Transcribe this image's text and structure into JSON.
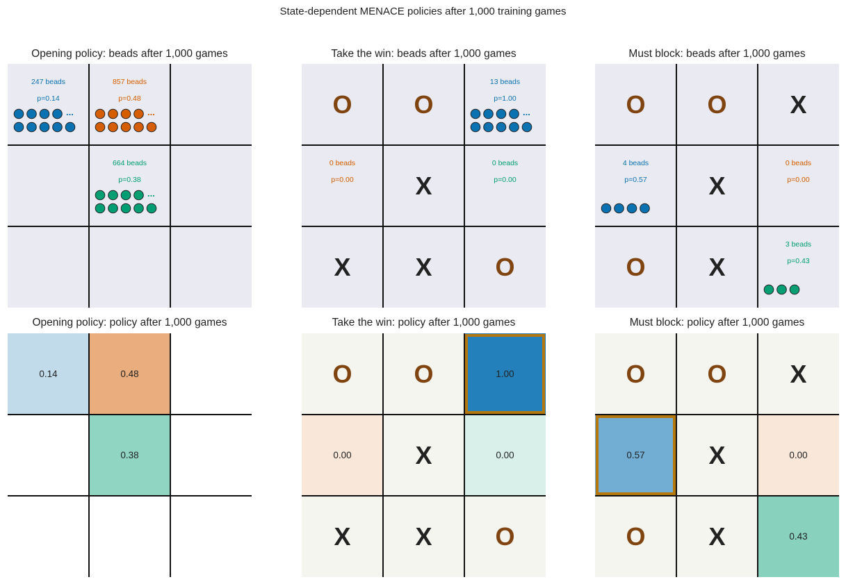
{
  "title": "State-dependent MENACE policies after 1,000 training games",
  "chart_data": [
    {
      "type": "heatmap",
      "title": "Opening policy: beads after 1,000 games",
      "kind": "beads",
      "board": [
        "",
        "",
        "",
        "",
        "",
        "",
        "",
        "",
        ""
      ],
      "cells": [
        {
          "index": 0,
          "beads": 247,
          "beads_label": "247 beads",
          "p_label": "p=0.14",
          "color": "#0b72b2",
          "dots": 9,
          "ellipsis": true
        },
        {
          "index": 1,
          "beads": 857,
          "beads_label": "857 beads",
          "p_label": "p=0.48",
          "color": "#d55e00",
          "dots": 9,
          "ellipsis": true
        },
        {
          "index": 4,
          "beads": 664,
          "beads_label": "664 beads",
          "p_label": "p=0.38",
          "color": "#009e73",
          "dots": 9,
          "ellipsis": true
        }
      ],
      "ellipsis_text": "..."
    },
    {
      "type": "heatmap",
      "title": "Take the win: beads after 1,000 games",
      "kind": "beads",
      "board": [
        "O",
        "O",
        "",
        "",
        "X",
        "",
        "X",
        "X",
        "O"
      ],
      "cells": [
        {
          "index": 2,
          "beads": 13,
          "beads_label": "13 beads",
          "p_label": "p=1.00",
          "color": "#0b72b2",
          "dots": 9,
          "ellipsis": true
        },
        {
          "index": 3,
          "beads": 0,
          "beads_label": "0 beads",
          "p_label": "p=0.00",
          "color": "#d55e00",
          "dots": 0,
          "ellipsis": false
        },
        {
          "index": 5,
          "beads": 0,
          "beads_label": "0 beads",
          "p_label": "p=0.00",
          "color": "#009e73",
          "dots": 0,
          "ellipsis": false
        }
      ],
      "ellipsis_text": "..."
    },
    {
      "type": "heatmap",
      "title": "Must block: beads after 1,000 games",
      "kind": "beads",
      "board": [
        "O",
        "O",
        "X",
        "",
        "X",
        "",
        "O",
        "X",
        ""
      ],
      "cells": [
        {
          "index": 3,
          "beads": 4,
          "beads_label": "4 beads",
          "p_label": "p=0.57",
          "color": "#0b72b2",
          "dots": 4,
          "ellipsis": false
        },
        {
          "index": 5,
          "beads": 0,
          "beads_label": "0 beads",
          "p_label": "p=0.00",
          "color": "#d55e00",
          "dots": 0,
          "ellipsis": false
        },
        {
          "index": 8,
          "beads": 3,
          "beads_label": "3 beads",
          "p_label": "p=0.43",
          "color": "#009e73",
          "dots": 3,
          "ellipsis": false
        }
      ],
      "ellipsis_text": "..."
    },
    {
      "type": "heatmap",
      "title": "Opening policy: policy after 1,000 games",
      "kind": "policy",
      "board": [
        "",
        "",
        "",
        "",
        "",
        "",
        "",
        "",
        ""
      ],
      "cells": [
        {
          "index": 0,
          "prob": 0.14,
          "label": "0.14",
          "color": "#0b72b2"
        },
        {
          "index": 1,
          "prob": 0.48,
          "label": "0.48",
          "color": "#d55e00"
        },
        {
          "index": 4,
          "prob": 0.38,
          "label": "0.38",
          "color": "#009e73"
        }
      ],
      "chosen_index": null
    },
    {
      "type": "heatmap",
      "title": "Take the win: policy after 1,000 games",
      "kind": "policy",
      "board": [
        "O",
        "O",
        "",
        "",
        "X",
        "",
        "X",
        "X",
        "O"
      ],
      "cells": [
        {
          "index": 2,
          "prob": 1.0,
          "label": "1.00",
          "color": "#0b72b2"
        },
        {
          "index": 3,
          "prob": 0.0,
          "label": "0.00",
          "color": "#d55e00"
        },
        {
          "index": 5,
          "prob": 0.0,
          "label": "0.00",
          "color": "#009e73"
        }
      ],
      "chosen_index": 2
    },
    {
      "type": "heatmap",
      "title": "Must block: policy after 1,000 games",
      "kind": "policy",
      "board": [
        "O",
        "O",
        "X",
        "",
        "X",
        "",
        "O",
        "X",
        ""
      ],
      "cells": [
        {
          "index": 3,
          "prob": 0.57,
          "label": "0.57",
          "color": "#0b72b2"
        },
        {
          "index": 5,
          "prob": 0.0,
          "label": "0.00",
          "color": "#d55e00"
        },
        {
          "index": 8,
          "prob": 0.43,
          "label": "0.43",
          "color": "#009e73"
        }
      ],
      "chosen_index": 3
    }
  ]
}
